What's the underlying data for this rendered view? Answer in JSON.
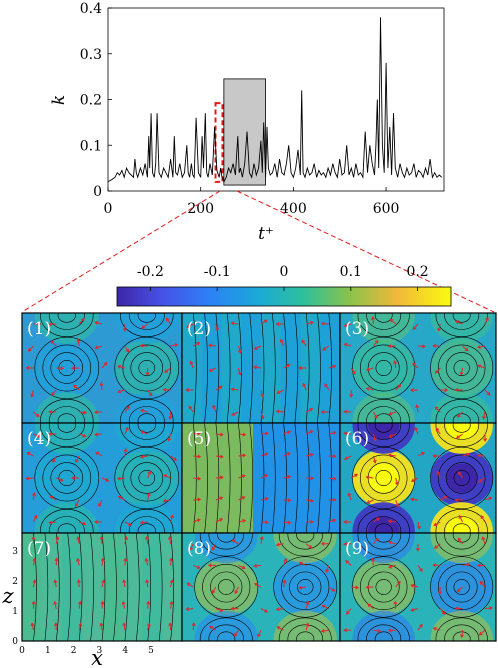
{
  "chart_data": [
    {
      "type": "line",
      "xlabel": "t⁺",
      "ylabel": "k",
      "xlim": [
        0,
        725
      ],
      "ylim": [
        0,
        0.4
      ],
      "x_ticks": [
        "0",
        "200",
        "400",
        "600"
      ],
      "y_ticks": [
        "0",
        "0.1",
        "0.2",
        "0.3",
        "0.4"
      ],
      "series": [
        {
          "x": [
            0,
            8,
            15,
            20,
            25,
            30,
            35,
            40,
            45,
            50,
            55,
            58,
            61,
            64,
            70,
            75,
            80,
            85,
            88,
            90,
            93,
            96,
            100,
            103,
            106,
            110,
            115,
            120,
            125,
            130,
            135,
            140,
            143,
            146,
            150,
            155,
            160,
            165,
            170,
            173,
            176,
            180,
            183,
            186,
            190,
            195,
            200,
            203,
            206,
            210,
            213,
            216,
            220,
            225,
            230,
            235,
            240,
            243,
            246,
            250,
            255,
            260,
            265,
            270,
            275,
            280,
            283,
            286,
            290,
            295,
            300,
            305,
            310,
            315,
            320,
            325,
            330,
            333,
            336,
            340,
            343,
            346,
            350,
            355,
            360,
            365,
            370,
            375,
            380,
            385,
            390,
            395,
            400,
            405,
            410,
            415,
            418,
            421,
            425,
            430,
            435,
            440,
            445,
            450,
            455,
            460,
            465,
            470,
            475,
            480,
            485,
            490,
            495,
            500,
            505,
            510,
            515,
            520,
            525,
            530,
            535,
            540,
            545,
            550,
            555,
            560,
            565,
            570,
            575,
            578,
            581,
            584,
            588,
            592,
            596,
            600,
            604,
            608,
            612,
            616,
            620,
            625,
            630,
            635,
            640,
            645,
            650,
            655,
            660,
            665,
            670,
            675,
            680,
            685,
            690,
            695,
            700,
            705,
            710,
            715,
            720
          ],
          "y": [
            0.02,
            0.025,
            0.03,
            0.04,
            0.035,
            0.045,
            0.03,
            0.05,
            0.04,
            0.035,
            0.03,
            0.07,
            0.04,
            0.03,
            0.05,
            0.035,
            0.06,
            0.03,
            0.12,
            0.05,
            0.17,
            0.04,
            0.03,
            0.06,
            0.17,
            0.04,
            0.03,
            0.05,
            0.04,
            0.03,
            0.07,
            0.03,
            0.12,
            0.04,
            0.035,
            0.06,
            0.03,
            0.04,
            0.1,
            0.04,
            0.03,
            0.06,
            0.035,
            0.03,
            0.16,
            0.04,
            0.03,
            0.12,
            0.05,
            0.17,
            0.04,
            0.03,
            0.06,
            0.035,
            0.14,
            0.045,
            0.03,
            0.05,
            0.03,
            0.02,
            0.03,
            0.05,
            0.04,
            0.06,
            0.035,
            0.12,
            0.04,
            0.05,
            0.03,
            0.06,
            0.13,
            0.04,
            0.03,
            0.06,
            0.035,
            0.05,
            0.11,
            0.04,
            0.15,
            0.03,
            0.14,
            0.05,
            0.035,
            0.04,
            0.06,
            0.03,
            0.07,
            0.04,
            0.035,
            0.06,
            0.1,
            0.04,
            0.03,
            0.05,
            0.09,
            0.035,
            0.22,
            0.04,
            0.03,
            0.05,
            0.035,
            0.04,
            0.06,
            0.03,
            0.045,
            0.035,
            0.04,
            0.03,
            0.05,
            0.035,
            0.06,
            0.04,
            0.03,
            0.07,
            0.035,
            0.04,
            0.1,
            0.035,
            0.05,
            0.03,
            0.06,
            0.035,
            0.04,
            0.03,
            0.13,
            0.04,
            0.1,
            0.06,
            0.035,
            0.1,
            0.2,
            0.05,
            0.38,
            0.1,
            0.04,
            0.28,
            0.05,
            0.14,
            0.035,
            0.17,
            0.05,
            0.03,
            0.06,
            0.04,
            0.03,
            0.05,
            0.035,
            0.04,
            0.06,
            0.03,
            0.045,
            0.04,
            0.03,
            0.05,
            0.035,
            0.07,
            0.03,
            0.04,
            0.03,
            0.035,
            0.03
          ]
        }
      ],
      "annotations": [
        {
          "kind": "shaded-box",
          "t_range": [
            250,
            340
          ],
          "k_range": [
            0.013,
            0.245
          ],
          "color": "#c8c8c8"
        },
        {
          "kind": "dashed-box",
          "t_range": [
            232,
            247
          ],
          "k_range": [
            0.02,
            0.192
          ],
          "color": "#e01b1b"
        }
      ]
    },
    {
      "type": "heatmap",
      "colorbar": {
        "min": -0.25,
        "max": 0.25,
        "ticks": [
          "-0.2",
          "-0.1",
          "0",
          "0.1",
          "0.2"
        ],
        "colormap": "parula"
      },
      "xlabel": "x",
      "ylabel": "z",
      "x_ticks": [
        "0",
        "1",
        "2",
        "3",
        "4",
        "5"
      ],
      "z_ticks": [
        "0",
        "1",
        "2",
        "3"
      ],
      "panels": [
        {
          "label": "(1)",
          "bg": "#2e9ad4",
          "pattern": "blobs",
          "lobes": [
            -0.05,
            0.03
          ],
          "contours": "loops",
          "arrows": "mixed"
        },
        {
          "label": "(2)",
          "bg": "#1ea1d8",
          "pattern": "bands",
          "lobes": [
            0.0,
            0.0
          ],
          "contours": "vertical",
          "arrows": "mixed"
        },
        {
          "label": "(3)",
          "bg": "#27a8c8",
          "pattern": "blobs",
          "lobes": [
            0.04,
            0.06
          ],
          "contours": "loops",
          "arrows": "mixed"
        },
        {
          "label": "(4)",
          "bg": "#249dd8",
          "pattern": "blobs",
          "lobes": [
            -0.03,
            0.02
          ],
          "contours": "loops",
          "arrows": "mixed"
        },
        {
          "label": "(5)",
          "bg": "#1b8ed9",
          "pattern": "half",
          "lobes": [
            0.1,
            -0.08
          ],
          "contours": "vertical",
          "arrows": "right"
        },
        {
          "label": "(6)",
          "bg": "#22a6c4",
          "pattern": "strong",
          "lobes": [
            0.22,
            -0.22
          ],
          "contours": "loops",
          "arrows": "mixed"
        },
        {
          "label": "(7)",
          "bg": "#4dbb9a",
          "pattern": "bands",
          "lobes": [
            0.05,
            0.02
          ],
          "contours": "vertical",
          "arrows": "up"
        },
        {
          "label": "(8)",
          "bg": "#2ab3b8",
          "pattern": "checker",
          "lobes": [
            0.12,
            -0.1
          ],
          "contours": "loops",
          "arrows": "mixed"
        },
        {
          "label": "(9)",
          "bg": "#2ab3b8",
          "pattern": "checker",
          "lobes": [
            0.12,
            -0.12
          ],
          "contours": "loops",
          "arrows": "mixed"
        }
      ]
    }
  ]
}
